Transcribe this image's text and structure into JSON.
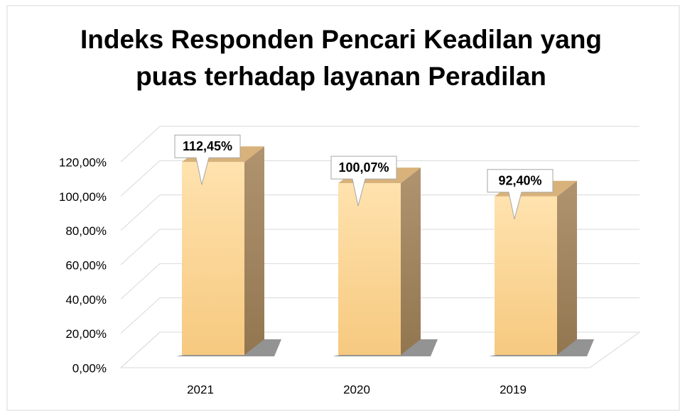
{
  "chart_data": {
    "type": "bar3d",
    "title": "Indeks Responden Pencari Keadilan yang puas terhadap layanan Peradilan",
    "categories": [
      "2021",
      "2020",
      "2019"
    ],
    "values": [
      112.45,
      100.07,
      92.4
    ],
    "value_labels": [
      "112,45%",
      "100,07%",
      "92,40%"
    ],
    "color": "#fbd597",
    "ylim": [
      0,
      120
    ],
    "yticks": [
      {
        "value": 0,
        "label": "0,00%"
      },
      {
        "value": 20,
        "label": "20,00%"
      },
      {
        "value": 40,
        "label": "40,00%"
      },
      {
        "value": 60,
        "label": "60,00%"
      },
      {
        "value": 80,
        "label": "80,00%"
      },
      {
        "value": 100,
        "label": "100,00%"
      },
      {
        "value": 120,
        "label": "120,00%"
      }
    ],
    "grid": true
  }
}
